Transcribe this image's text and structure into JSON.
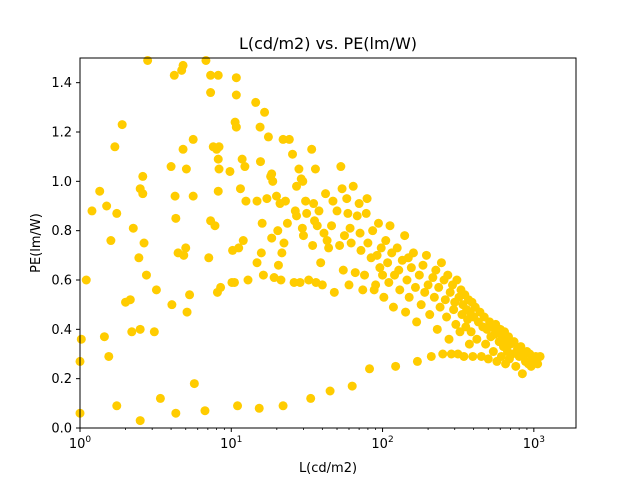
{
  "chart_data": {
    "type": "scatter",
    "title": "L(cd/m2) vs. PE(lm/W)",
    "xlabel": "L(cd/m2)",
    "ylabel": "PE(lm/W)",
    "xscale": "log",
    "xlim": [
      1,
      1900
    ],
    "ylim": [
      0,
      1.5
    ],
    "xticks": [
      1,
      10,
      100,
      1000
    ],
    "xtick_labels": [
      "10^0",
      "10^1",
      "10^2",
      "10^3"
    ],
    "yticks": [
      0.0,
      0.2,
      0.4,
      0.6,
      0.8,
      1.0,
      1.2,
      1.4
    ],
    "ytick_labels": [
      "0.0",
      "0.2",
      "0.4",
      "0.6",
      "0.8",
      "1.0",
      "1.2",
      "1.4"
    ],
    "grid": false,
    "marker_color": "#ffcc00",
    "series": [
      {
        "points": [
          [
            1.0,
            0.06
          ],
          [
            1.0,
            0.27
          ],
          [
            1.02,
            0.36
          ],
          [
            1.1,
            0.6
          ],
          [
            1.2,
            0.88
          ],
          [
            1.35,
            0.96
          ],
          [
            1.45,
            0.37
          ],
          [
            1.5,
            0.9
          ],
          [
            1.55,
            0.29
          ],
          [
            1.6,
            0.76
          ],
          [
            1.7,
            1.14
          ],
          [
            1.75,
            0.87
          ],
          [
            1.75,
            0.09
          ],
          [
            1.9,
            1.23
          ],
          [
            2.0,
            0.51
          ],
          [
            2.15,
            0.52
          ],
          [
            2.2,
            0.39
          ],
          [
            2.25,
            0.81
          ],
          [
            2.45,
            0.69
          ],
          [
            2.5,
            0.97
          ],
          [
            2.5,
            0.4
          ],
          [
            2.5,
            0.03
          ],
          [
            2.6,
            0.95
          ],
          [
            2.6,
            1.02
          ],
          [
            2.65,
            0.75
          ],
          [
            2.75,
            0.62
          ],
          [
            2.8,
            1.49
          ],
          [
            3.1,
            0.39
          ],
          [
            3.2,
            0.56
          ],
          [
            3.4,
            0.12
          ],
          [
            4.0,
            1.06
          ],
          [
            4.05,
            0.5
          ],
          [
            4.2,
            1.43
          ],
          [
            4.25,
            0.94
          ],
          [
            4.3,
            0.85
          ],
          [
            4.3,
            0.06
          ],
          [
            4.45,
            0.71
          ],
          [
            4.7,
            1.45
          ],
          [
            4.8,
            1.47
          ],
          [
            4.8,
            1.13
          ],
          [
            4.85,
            0.7
          ],
          [
            5.0,
            0.73
          ],
          [
            5.05,
            1.05
          ],
          [
            5.1,
            0.47
          ],
          [
            5.3,
            0.54
          ],
          [
            5.6,
            1.17
          ],
          [
            5.6,
            0.94
          ],
          [
            5.7,
            0.18
          ],
          [
            6.7,
            0.07
          ],
          [
            6.8,
            1.49
          ],
          [
            7.1,
            0.69
          ],
          [
            7.3,
            1.43
          ],
          [
            7.3,
            1.36
          ],
          [
            7.3,
            0.84
          ],
          [
            7.6,
            1.14
          ],
          [
            7.8,
            0.82
          ],
          [
            8.0,
            1.13
          ],
          [
            8.1,
            0.55
          ],
          [
            8.2,
            1.09
          ],
          [
            8.2,
            0.96
          ],
          [
            8.3,
            1.14
          ],
          [
            8.5,
            0.57
          ],
          [
            8.2,
            1.43
          ],
          [
            8.3,
            1.05
          ],
          [
            9.8,
            1.04
          ],
          [
            10.1,
            0.59
          ],
          [
            10.2,
            0.72
          ],
          [
            10.5,
            0.59
          ],
          [
            10.6,
            1.24
          ],
          [
            10.8,
            1.42
          ],
          [
            10.8,
            1.35
          ],
          [
            10.8,
            1.22
          ],
          [
            11.2,
            0.73
          ],
          [
            11.0,
            0.09
          ],
          [
            11.5,
            0.97
          ],
          [
            11.8,
            1.09
          ],
          [
            12.0,
            0.76
          ],
          [
            12.3,
            1.06
          ],
          [
            12.5,
            0.92
          ],
          [
            12.9,
            0.6
          ],
          [
            14.5,
            1.32
          ],
          [
            14.8,
            0.67
          ],
          [
            14.8,
            0.92
          ],
          [
            15.3,
            0.08
          ],
          [
            15.5,
            1.22
          ],
          [
            15.6,
            1.08
          ],
          [
            15.8,
            0.71
          ],
          [
            16.0,
            0.83
          ],
          [
            16.3,
            0.62
          ],
          [
            16.6,
            1.28
          ],
          [
            17.2,
            0.93
          ],
          [
            17.6,
            1.18
          ],
          [
            18.2,
            1.02
          ],
          [
            18.5,
            1.03
          ],
          [
            18.5,
            0.77
          ],
          [
            18.8,
            1.0
          ],
          [
            19.2,
            0.61
          ],
          [
            19.9,
            0.94
          ],
          [
            20.3,
            0.8
          ],
          [
            20.5,
            0.66
          ],
          [
            21.0,
            0.91
          ],
          [
            21.3,
            0.6
          ],
          [
            21.6,
            0.71
          ],
          [
            22.0,
            1.17
          ],
          [
            22.0,
            0.09
          ],
          [
            22.3,
            0.75
          ],
          [
            22.8,
            0.92
          ],
          [
            23.5,
            0.83
          ],
          [
            24.2,
            1.17
          ],
          [
            25.4,
            1.11
          ],
          [
            26.0,
            0.59
          ],
          [
            26.5,
            0.88
          ],
          [
            27.0,
            0.86
          ],
          [
            27.0,
            0.98
          ],
          [
            28.0,
            1.05
          ],
          [
            28.5,
            0.59
          ],
          [
            29.0,
            1.01
          ],
          [
            29.5,
            0.81
          ],
          [
            29.7,
            1.0
          ],
          [
            30.0,
            0.78
          ],
          [
            31.0,
            0.92
          ],
          [
            31.5,
            0.87
          ],
          [
            32.5,
            0.6
          ],
          [
            33.5,
            0.12
          ],
          [
            34.0,
            1.13
          ],
          [
            34.5,
            0.74
          ],
          [
            35.0,
            0.91
          ],
          [
            35.5,
            0.84
          ],
          [
            36.0,
            1.05
          ],
          [
            36.3,
            0.59
          ],
          [
            37.0,
            0.82
          ],
          [
            38.0,
            0.88
          ],
          [
            39.0,
            0.67
          ],
          [
            40.0,
            0.58
          ],
          [
            41.0,
            0.79
          ],
          [
            42.0,
            0.95
          ],
          [
            43.0,
            0.76
          ],
          [
            44.0,
            0.73
          ],
          [
            45.0,
            0.15
          ],
          [
            46.0,
            0.82
          ],
          [
            47.0,
            0.92
          ],
          [
            48.0,
            0.55
          ],
          [
            50.0,
            0.88
          ],
          [
            52.0,
            0.74
          ],
          [
            53.0,
            1.06
          ],
          [
            54.0,
            0.97
          ],
          [
            55.0,
            0.64
          ],
          [
            56.0,
            0.78
          ],
          [
            58.0,
            0.93
          ],
          [
            59.0,
            0.87
          ],
          [
            60.0,
            0.58
          ],
          [
            61.0,
            0.81
          ],
          [
            62.0,
            0.75
          ],
          [
            63.0,
            0.17
          ],
          [
            64.0,
            0.98
          ],
          [
            66.0,
            0.63
          ],
          [
            68.0,
            0.86
          ],
          [
            70.0,
            0.91
          ],
          [
            71.0,
            0.79
          ],
          [
            72.0,
            0.72
          ],
          [
            74.0,
            0.56
          ],
          [
            76.0,
            0.62
          ],
          [
            78.0,
            0.87
          ],
          [
            79.0,
            0.93
          ],
          [
            80.0,
            0.75
          ],
          [
            82.0,
            0.24
          ],
          [
            84.0,
            0.69
          ],
          [
            86.0,
            0.8
          ],
          [
            88.0,
            0.56
          ],
          [
            90.0,
            0.58
          ],
          [
            92.0,
            0.7
          ],
          [
            94.0,
            0.83
          ],
          [
            96.0,
            0.65
          ],
          [
            98.0,
            0.73
          ],
          [
            100.0,
            0.62
          ],
          [
            102.0,
            0.53
          ],
          [
            105.0,
            0.76
          ],
          [
            108.0,
            0.67
          ],
          [
            110.0,
            0.59
          ],
          [
            112.0,
            0.82
          ],
          [
            115.0,
            0.71
          ],
          [
            118.0,
            0.49
          ],
          [
            120.0,
            0.62
          ],
          [
            122.0,
            0.25
          ],
          [
            125.0,
            0.73
          ],
          [
            128.0,
            0.64
          ],
          [
            130.0,
            0.56
          ],
          [
            135.0,
            0.68
          ],
          [
            140.0,
            0.78
          ],
          [
            142.0,
            0.47
          ],
          [
            145.0,
            0.6
          ],
          [
            148.0,
            0.69
          ],
          [
            150.0,
            0.53
          ],
          [
            155.0,
            0.65
          ],
          [
            160.0,
            0.71
          ],
          [
            165.0,
            0.57
          ],
          [
            168.0,
            0.43
          ],
          [
            170.0,
            0.27
          ],
          [
            175.0,
            0.62
          ],
          [
            180.0,
            0.5
          ],
          [
            185.0,
            0.66
          ],
          [
            190.0,
            0.55
          ],
          [
            195.0,
            0.7
          ],
          [
            200.0,
            0.58
          ],
          [
            205.0,
            0.46
          ],
          [
            210.0,
            0.29
          ],
          [
            215.0,
            0.61
          ],
          [
            220.0,
            0.53
          ],
          [
            225.0,
            0.64
          ],
          [
            230.0,
            0.4
          ],
          [
            235.0,
            0.57
          ],
          [
            240.0,
            0.49
          ],
          [
            245.0,
            0.67
          ],
          [
            250.0,
            0.3
          ],
          [
            255.0,
            0.6
          ],
          [
            260.0,
            0.52
          ],
          [
            265.0,
            0.45
          ],
          [
            270.0,
            0.62
          ],
          [
            275.0,
            0.36
          ],
          [
            280.0,
            0.55
          ],
          [
            285.0,
            0.3
          ],
          [
            290.0,
            0.58
          ],
          [
            295.0,
            0.48
          ],
          [
            300.0,
            0.51
          ],
          [
            305.0,
            0.42
          ],
          [
            310.0,
            0.6
          ],
          [
            315.0,
            0.3
          ],
          [
            320.0,
            0.53
          ],
          [
            325.0,
            0.39
          ],
          [
            330.0,
            0.56
          ],
          [
            335.0,
            0.46
          ],
          [
            340.0,
            0.5
          ],
          [
            345.0,
            0.29
          ],
          [
            350.0,
            0.54
          ],
          [
            355.0,
            0.41
          ],
          [
            360.0,
            0.48
          ],
          [
            365.0,
            0.44
          ],
          [
            370.0,
            0.52
          ],
          [
            375.0,
            0.34
          ],
          [
            380.0,
            0.47
          ],
          [
            385.0,
            0.39
          ],
          [
            390.0,
            0.51
          ],
          [
            395.0,
            0.29
          ],
          [
            400.0,
            0.45
          ],
          [
            410.0,
            0.49
          ],
          [
            420.0,
            0.36
          ],
          [
            430.0,
            0.43
          ],
          [
            440.0,
            0.47
          ],
          [
            450.0,
            0.29
          ],
          [
            460.0,
            0.41
          ],
          [
            470.0,
            0.45
          ],
          [
            480.0,
            0.34
          ],
          [
            490.0,
            0.4
          ],
          [
            500.0,
            0.28
          ],
          [
            510.0,
            0.43
          ],
          [
            520.0,
            0.37
          ],
          [
            530.0,
            0.41
          ],
          [
            540.0,
            0.31
          ],
          [
            550.0,
            0.38
          ],
          [
            560.0,
            0.42
          ],
          [
            570.0,
            0.27
          ],
          [
            580.0,
            0.39
          ],
          [
            590.0,
            0.35
          ],
          [
            600.0,
            0.4
          ],
          [
            610.0,
            0.29
          ],
          [
            620.0,
            0.37
          ],
          [
            630.0,
            0.33
          ],
          [
            640.0,
            0.39
          ],
          [
            650.0,
            0.26
          ],
          [
            660.0,
            0.36
          ],
          [
            670.0,
            0.31
          ],
          [
            680.0,
            0.37
          ],
          [
            690.0,
            0.28
          ],
          [
            700.0,
            0.34
          ],
          [
            720.0,
            0.3
          ],
          [
            740.0,
            0.35
          ],
          [
            760.0,
            0.25
          ],
          [
            780.0,
            0.32
          ],
          [
            800.0,
            0.29
          ],
          [
            820.0,
            0.33
          ],
          [
            840.0,
            0.22
          ],
          [
            860.0,
            0.3
          ],
          [
            880.0,
            0.27
          ],
          [
            900.0,
            0.31
          ],
          [
            920.0,
            0.26
          ],
          [
            940.0,
            0.3
          ],
          [
            960.0,
            0.25
          ],
          [
            980.0,
            0.28
          ],
          [
            1000.0,
            0.27
          ],
          [
            1030.0,
            0.29
          ],
          [
            1060.0,
            0.26
          ],
          [
            1100.0,
            0.29
          ]
        ]
      }
    ]
  }
}
